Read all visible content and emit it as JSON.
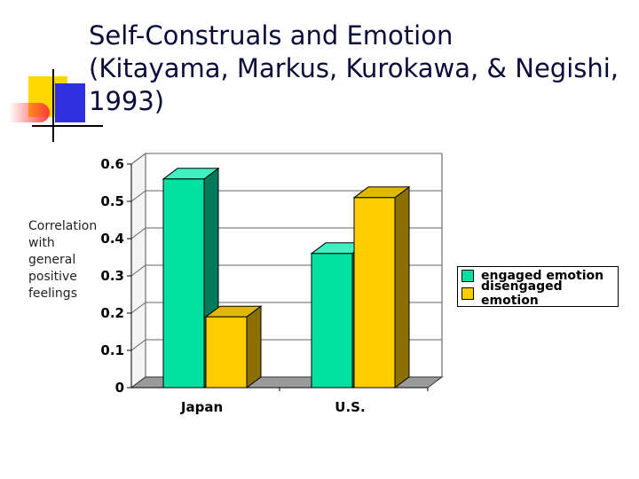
{
  "slide": {
    "title_lines": [
      "Self-Construals and Emotion",
      "(Kitayama, Markus, Kurokawa, & Negishi,",
      "1993)"
    ]
  },
  "decoration": {
    "yellow": "#ffd700",
    "red": "#ff3b3b",
    "blue": "#3030e0",
    "line": "#000000"
  },
  "chart_data": {
    "type": "bar",
    "ylabel_lines": [
      "Correlation",
      "with",
      "general",
      "positive",
      "feelings"
    ],
    "categories": [
      "Japan",
      "U.S."
    ],
    "series": [
      {
        "name": "engaged emotion",
        "values": [
          0.56,
          0.36
        ],
        "color": "#00e0a0",
        "side_color": "#007a58",
        "top_color": "#40f0c0"
      },
      {
        "name": "disengaged emotion",
        "values": [
          0.19,
          0.51
        ],
        "color": "#ffcc00",
        "side_color": "#8a7000",
        "top_color": "#e0b800"
      }
    ],
    "ylim": [
      0,
      0.6
    ],
    "yticks": [
      "0",
      "0.1",
      "0.2",
      "0.3",
      "0.4",
      "0.5",
      "0.6"
    ],
    "grid": true,
    "legend_position": "right",
    "wall_color": "#ffffff",
    "floor_color": "#9a9a9a"
  }
}
